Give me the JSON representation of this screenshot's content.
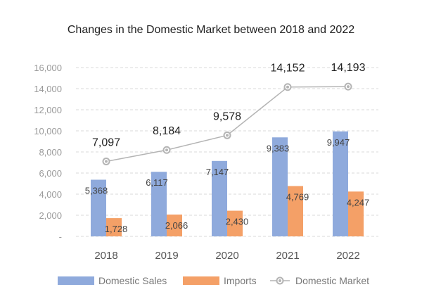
{
  "chart_data": {
    "type": "bar",
    "title": "Changes in the Domestic Market between 2018 and 2022",
    "categories": [
      "2018",
      "2019",
      "2020",
      "2021",
      "2022"
    ],
    "series": [
      {
        "name": "Domestic Sales",
        "kind": "bar",
        "color": "#8faadc",
        "values": [
          5368,
          6117,
          7147,
          9383,
          9947
        ],
        "labels": [
          "5,368",
          "6,117",
          "7,147",
          "9,383",
          "9,947"
        ]
      },
      {
        "name": "Imports",
        "kind": "bar",
        "color": "#f4a067",
        "values": [
          1728,
          2066,
          2430,
          4769,
          4247
        ],
        "labels": [
          "1,728",
          "2,066",
          "2,430",
          "4,769",
          "4,247"
        ]
      },
      {
        "name": "Domestic Market",
        "kind": "line",
        "color": "#b4b4b4",
        "values": [
          7097,
          8184,
          9578,
          14152,
          14193
        ],
        "labels": [
          "7,097",
          "8,184",
          "9,578",
          "14,152",
          "14,193"
        ]
      }
    ],
    "yticks": [
      "-",
      "2,000",
      "4,000",
      "6,000",
      "8,000",
      "10,000",
      "12,000",
      "14,000",
      "16,000"
    ],
    "ylim": [
      0,
      16000
    ],
    "grid": true,
    "legend_position": "bottom"
  }
}
